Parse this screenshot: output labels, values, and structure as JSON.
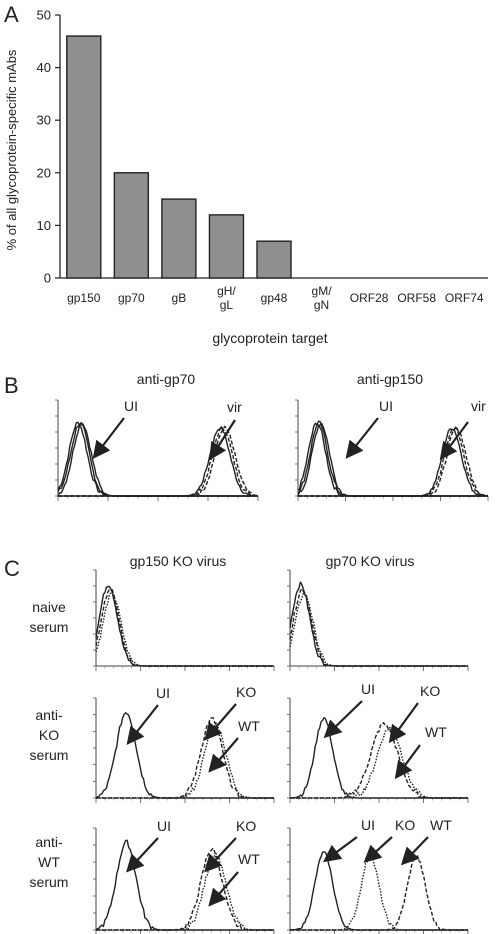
{
  "panel_a": {
    "letter": "A",
    "chart_data": {
      "type": "bar",
      "categories": [
        "gp150",
        "gp70",
        "gB",
        "gH/gL",
        "gp48",
        "gM/gN",
        "ORF28",
        "ORF58",
        "ORF74"
      ],
      "category_lines": [
        [
          "gp150"
        ],
        [
          "gp70"
        ],
        [
          "gB"
        ],
        [
          "gH/",
          "gL"
        ],
        [
          "gp48"
        ],
        [
          "gM/",
          "gN"
        ],
        [
          "ORF28"
        ],
        [
          "ORF58"
        ],
        [
          "ORF74"
        ]
      ],
      "values": [
        46,
        20,
        15,
        12,
        7,
        0,
        0,
        0,
        0
      ],
      "xlabel": "glycoprotein target",
      "ylabel": "% of all glycoprotein-specific mAbs",
      "ylim": [
        0,
        50
      ],
      "yticks": [
        "0",
        "10",
        "20",
        "30",
        "40",
        "50"
      ],
      "bar_color": "#8f8f8f"
    }
  },
  "panel_b": {
    "letter": "B",
    "plots": [
      {
        "title": "anti-gp70",
        "annotations": {
          "ui": "UI",
          "vir": "vir"
        }
      },
      {
        "title": "anti-gp150",
        "annotations": {
          "ui": "UI",
          "vir": "vir"
        }
      }
    ]
  },
  "panel_c": {
    "letter": "C",
    "columns": [
      "gp150 KO virus",
      "gp70 KO virus"
    ],
    "rows": [
      {
        "label_lines": [
          "naive",
          "serum"
        ]
      },
      {
        "label_lines": [
          "anti-",
          "KO",
          "serum"
        ]
      },
      {
        "label_lines": [
          "anti-",
          "WT",
          "serum"
        ]
      }
    ],
    "annotations": {
      "ui": "UI",
      "ko": "KO",
      "wt": "WT"
    }
  }
}
